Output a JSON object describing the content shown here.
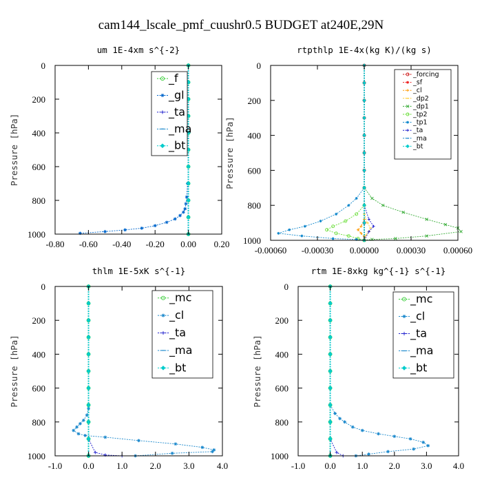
{
  "title": "cam144_lscale_pmf_cuushr0.5  BUDGET at240E,29N",
  "colors": {
    "_f": "#33cc33",
    "_gl": "#0066cc",
    "_ta": "#1a1acc",
    "_ma": "#1a88cc",
    "_bt": "#00cccc",
    "_forcing": "#cc1111",
    "_sf": "#ee2222",
    "_cl": "#ff9900",
    "_dp2": "#ffcc33",
    "_dp1": "#33aa33",
    "_tp2": "#66dd33",
    "_tp1": "#1188cc",
    "_mc": "#33cc33",
    "_cl2": "#1a88cc"
  },
  "chart_data": [
    {
      "id": "um",
      "type": "line",
      "title": "um  1E-4xm s^{-2}",
      "ylabel": "Pressure [hPa]",
      "xlim": [
        -0.8,
        0.2
      ],
      "ylim": [
        1000,
        0
      ],
      "xticks": [
        -0.8,
        -0.6,
        -0.4,
        -0.2,
        0.0,
        0.2
      ],
      "xtick_labels": [
        "-0.80",
        "-0.60",
        "-0.40",
        "-0.20",
        "0.00",
        "0.20"
      ],
      "yticks": [
        0,
        200,
        400,
        600,
        800,
        1000
      ],
      "legend": [
        "_f",
        "_gl",
        "_ta",
        "_ma",
        "_bt"
      ],
      "legend_size": "large",
      "series": [
        {
          "name": "_f",
          "color": "#33cc33",
          "marker": "circle",
          "x": [
            0,
            0,
            0,
            0,
            0,
            0,
            0,
            0,
            0,
            0,
            0
          ],
          "y": [
            0,
            100,
            200,
            300,
            400,
            500,
            600,
            700,
            800,
            900,
            1000
          ]
        },
        {
          "name": "_gl",
          "color": "#0066cc",
          "marker": "star",
          "x": [
            -0.005,
            -0.01,
            -0.015,
            -0.02,
            -0.03,
            -0.05,
            -0.08,
            -0.13,
            -0.2,
            -0.28,
            -0.38,
            -0.5,
            -0.65
          ],
          "y": [
            700,
            780,
            820,
            850,
            870,
            890,
            910,
            930,
            950,
            965,
            975,
            985,
            995
          ]
        },
        {
          "name": "_ta",
          "color": "#1a1acc",
          "marker": "plus",
          "x": [
            0,
            0,
            0,
            0,
            0,
            0,
            0
          ],
          "y": [
            0,
            200,
            400,
            600,
            800,
            900,
            1000
          ]
        },
        {
          "name": "_ma",
          "color": "#1a88cc",
          "marker": "dash",
          "x": [
            0,
            0,
            0,
            0,
            0,
            0,
            0
          ],
          "y": [
            0,
            200,
            400,
            600,
            800,
            900,
            1000
          ]
        },
        {
          "name": "_bt",
          "color": "#00cccc",
          "marker": "diamond",
          "x": [
            0,
            0,
            0,
            0,
            0,
            0,
            0,
            0,
            0,
            0,
            0
          ],
          "y": [
            0,
            100,
            200,
            300,
            400,
            500,
            600,
            700,
            800,
            900,
            1000
          ]
        }
      ]
    },
    {
      "id": "rtpthlp",
      "type": "line",
      "title": "rtpthlp  1E-4x(kg K)/(kg s)",
      "ylabel": "Pressure [hPa]",
      "xlim": [
        -0.0006,
        0.0006
      ],
      "ylim": [
        1000,
        0
      ],
      "xticks": [
        -0.0006,
        -0.0003,
        0.0,
        0.0003,
        0.0006
      ],
      "xtick_labels": [
        "-0.00060",
        "-0.00030",
        "0.00000",
        "0.00030",
        "0.00060"
      ],
      "yticks": [
        0,
        200,
        400,
        600,
        800,
        1000
      ],
      "legend": [
        "_forcing",
        "_sf",
        "_cl",
        "_dp2",
        "_dp1",
        "_tp2",
        "_tp1",
        "_ta",
        "_ma",
        "_bt"
      ],
      "legend_size": "small",
      "series": [
        {
          "name": "_forcing",
          "color": "#cc1111",
          "marker": "circle",
          "x": [
            0,
            0,
            0,
            0,
            0,
            0,
            0,
            0,
            0,
            0,
            0
          ],
          "y": [
            0,
            100,
            200,
            300,
            400,
            500,
            600,
            700,
            800,
            900,
            1000
          ]
        },
        {
          "name": "_sf",
          "color": "#ee2222",
          "marker": "star",
          "x": [
            0,
            0,
            0,
            0,
            0,
            0,
            0,
            0,
            0,
            0,
            0
          ],
          "y": [
            0,
            100,
            200,
            300,
            400,
            500,
            600,
            700,
            800,
            900,
            1000
          ]
        },
        {
          "name": "_cl",
          "color": "#ff9900",
          "marker": "plus",
          "x": [
            0,
            0,
            -2e-05,
            -4e-05,
            -2e-05,
            0,
            0
          ],
          "y": [
            800,
            880,
            920,
            940,
            960,
            980,
            1000
          ]
        },
        {
          "name": "_dp2",
          "color": "#ffcc33",
          "marker": "dash",
          "x": [
            0,
            2e-05,
            4e-05,
            3e-05,
            1e-05,
            0
          ],
          "y": [
            850,
            900,
            930,
            950,
            970,
            1000
          ]
        },
        {
          "name": "_dp1",
          "color": "#33aa33",
          "marker": "x",
          "x": [
            0,
            5e-05,
            0.00012,
            0.00025,
            0.0004,
            0.00052,
            0.0006,
            0.00062,
            0.0004,
            0.0002,
            5e-05,
            0
          ],
          "y": [
            700,
            760,
            800,
            840,
            880,
            910,
            930,
            950,
            975,
            990,
            995,
            1000
          ]
        },
        {
          "name": "_tp2",
          "color": "#66dd33",
          "marker": "circle",
          "x": [
            0,
            -5e-05,
            -0.00012,
            -0.0002,
            -0.00024,
            -0.00018,
            -0.0001,
            -4e-05,
            0
          ],
          "y": [
            800,
            850,
            890,
            920,
            940,
            960,
            975,
            990,
            1000
          ]
        },
        {
          "name": "_tp1",
          "color": "#1188cc",
          "marker": "star",
          "x": [
            0,
            -5e-05,
            -0.0001,
            -0.00018,
            -0.00028,
            -0.00038,
            -0.00048,
            -0.00055,
            -0.0004,
            -0.0002,
            -5e-05,
            0
          ],
          "y": [
            700,
            760,
            800,
            850,
            890,
            920,
            940,
            960,
            975,
            990,
            995,
            1000
          ]
        },
        {
          "name": "_ta",
          "color": "#1a1acc",
          "marker": "plus",
          "x": [
            0,
            3e-05,
            6e-05,
            3e-05,
            0
          ],
          "y": [
            800,
            880,
            920,
            950,
            1000
          ]
        },
        {
          "name": "_ma",
          "color": "#1a88cc",
          "marker": "dash",
          "x": [
            0,
            0,
            0,
            0
          ],
          "y": [
            0,
            500,
            900,
            1000
          ]
        },
        {
          "name": "_bt",
          "color": "#00cccc",
          "marker": "diamond",
          "x": [
            0,
            0,
            0,
            0,
            0,
            0,
            0,
            0,
            0,
            0,
            0
          ],
          "y": [
            0,
            100,
            200,
            300,
            400,
            500,
            600,
            700,
            800,
            900,
            1000
          ]
        }
      ]
    },
    {
      "id": "thlm",
      "type": "line",
      "title": "thlm  1E-5xK s^{-1}",
      "ylabel": "Pressure [hPa]",
      "xlim": [
        -1.0,
        4.0
      ],
      "ylim": [
        1000,
        0
      ],
      "xticks": [
        -1.0,
        0.0,
        1.0,
        2.0,
        3.0,
        4.0
      ],
      "xtick_labels": [
        "-1.0",
        "0.0",
        "1.0",
        "2.0",
        "3.0",
        "4.0"
      ],
      "yticks": [
        0,
        200,
        400,
        600,
        800,
        1000
      ],
      "legend": [
        "_mc",
        "_cl",
        "_ta",
        "_ma",
        "_bt"
      ],
      "legend_size": "large",
      "series": [
        {
          "name": "_mc",
          "color": "#33cc33",
          "marker": "circle",
          "x": [
            0,
            0,
            0,
            0,
            0,
            0,
            0,
            0,
            0,
            0,
            0
          ],
          "y": [
            0,
            100,
            200,
            300,
            400,
            500,
            600,
            700,
            800,
            900,
            1000
          ]
        },
        {
          "name": "_cl",
          "color": "#1a88cc",
          "marker": "star",
          "x": [
            0,
            -0.05,
            -0.15,
            -0.25,
            -0.35,
            -0.45,
            -0.3,
            -0.1,
            0.5,
            1.5,
            2.6,
            3.4,
            3.75,
            3.7,
            2.5,
            1.4
          ],
          "y": [
            720,
            760,
            790,
            810,
            830,
            850,
            870,
            880,
            890,
            910,
            930,
            950,
            965,
            975,
            985,
            1000
          ]
        },
        {
          "name": "_ta",
          "color": "#1a1acc",
          "marker": "plus",
          "x": [
            0,
            0,
            0,
            0.2,
            0.5,
            1.0
          ],
          "y": [
            0,
            500,
            900,
            980,
            995,
            1000
          ]
        },
        {
          "name": "_ma",
          "color": "#1a88cc",
          "marker": "dash",
          "x": [
            0,
            0,
            0,
            0
          ],
          "y": [
            0,
            500,
            900,
            1000
          ]
        },
        {
          "name": "_bt",
          "color": "#00cccc",
          "marker": "diamond",
          "x": [
            0,
            0,
            0,
            0,
            0,
            0,
            0,
            0,
            0,
            0,
            0
          ],
          "y": [
            0,
            100,
            200,
            300,
            400,
            500,
            600,
            700,
            800,
            900,
            1000
          ]
        }
      ]
    },
    {
      "id": "rtm",
      "type": "line",
      "title": "rtm  1E-8xkg kg^{-1} s^{-1}",
      "ylabel": "Pressure [hPa]",
      "xlim": [
        -1.0,
        4.0
      ],
      "ylim": [
        1000,
        0
      ],
      "xticks": [
        -1.0,
        0.0,
        1.0,
        2.0,
        3.0,
        4.0
      ],
      "xtick_labels": [
        "-1.0",
        "0.0",
        "1.0",
        "2.0",
        "3.0",
        "4.0"
      ],
      "yticks": [
        0,
        200,
        400,
        600,
        800,
        1000
      ],
      "legend": [
        "_mc",
        "_cl",
        "_ta",
        "_ma",
        "_bt"
      ],
      "legend_size": "large",
      "series": [
        {
          "name": "_mc",
          "color": "#33cc33",
          "marker": "circle",
          "x": [
            0,
            0,
            0,
            0,
            0,
            0,
            0,
            0,
            0,
            0,
            0
          ],
          "y": [
            0,
            100,
            200,
            300,
            400,
            500,
            600,
            700,
            800,
            900,
            1000
          ]
        },
        {
          "name": "_cl",
          "color": "#1a88cc",
          "marker": "star",
          "x": [
            0,
            0.15,
            0.3,
            0.45,
            0.7,
            1.0,
            1.5,
            2.0,
            2.5,
            2.9,
            3.05,
            2.6,
            1.8,
            1.2,
            0.8
          ],
          "y": [
            700,
            750,
            780,
            800,
            830,
            850,
            870,
            885,
            900,
            920,
            940,
            960,
            975,
            990,
            1000
          ]
        },
        {
          "name": "_ta",
          "color": "#1a1acc",
          "marker": "plus",
          "x": [
            0,
            0,
            0,
            0.2,
            0.4
          ],
          "y": [
            0,
            500,
            900,
            980,
            1000
          ]
        },
        {
          "name": "_ma",
          "color": "#1a88cc",
          "marker": "dash",
          "x": [
            0,
            0,
            0,
            0
          ],
          "y": [
            0,
            500,
            900,
            1000
          ]
        },
        {
          "name": "_bt",
          "color": "#00cccc",
          "marker": "diamond",
          "x": [
            0,
            0,
            0,
            0,
            0,
            0,
            0,
            0,
            0,
            0,
            0
          ],
          "y": [
            0,
            100,
            200,
            300,
            400,
            500,
            600,
            700,
            800,
            900,
            1000
          ]
        }
      ]
    }
  ]
}
